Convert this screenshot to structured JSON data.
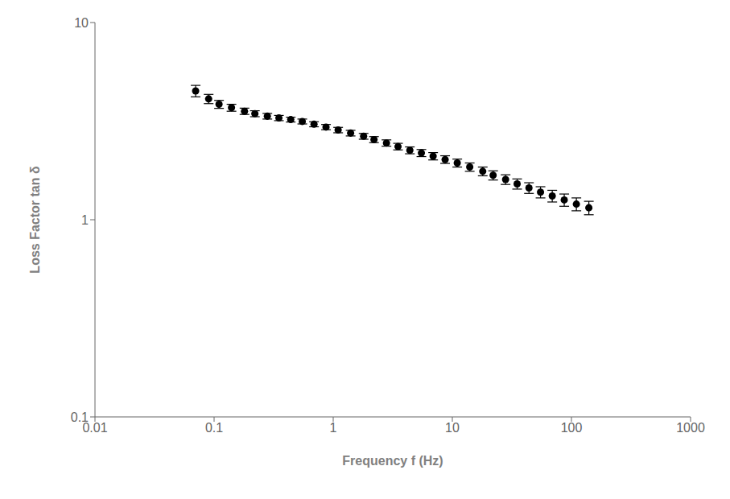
{
  "chart_data": {
    "type": "scatter",
    "xlabel": "Frequency f (Hz)",
    "ylabel": "Loss Factor tan δ",
    "x": [
      0.07,
      0.09,
      0.11,
      0.14,
      0.18,
      0.22,
      0.28,
      0.35,
      0.44,
      0.55,
      0.69,
      0.87,
      1.1,
      1.4,
      1.8,
      2.2,
      2.8,
      3.5,
      4.4,
      5.5,
      6.9,
      8.7,
      11.0,
      14.0,
      18.0,
      22.0,
      28.0,
      35.0,
      44.0,
      55.0,
      69.0,
      87.0,
      110.0,
      140.0
    ],
    "values": [
      4.5,
      4.1,
      3.85,
      3.7,
      3.55,
      3.45,
      3.35,
      3.28,
      3.22,
      3.15,
      3.05,
      2.95,
      2.85,
      2.75,
      2.65,
      2.55,
      2.45,
      2.35,
      2.25,
      2.18,
      2.1,
      2.02,
      1.94,
      1.85,
      1.76,
      1.68,
      1.6,
      1.52,
      1.45,
      1.38,
      1.32,
      1.26,
      1.2,
      1.15
    ],
    "yerr": [
      0.3,
      0.22,
      0.18,
      0.15,
      0.13,
      0.12,
      0.11,
      0.1,
      0.09,
      0.09,
      0.09,
      0.09,
      0.09,
      0.09,
      0.09,
      0.09,
      0.09,
      0.09,
      0.09,
      0.09,
      0.09,
      0.09,
      0.09,
      0.09,
      0.09,
      0.09,
      0.09,
      0.09,
      0.09,
      0.09,
      0.09,
      0.09,
      0.09,
      0.09
    ],
    "xlim": [
      0.01,
      1000
    ],
    "ylim": [
      0.1,
      10
    ],
    "xticks": [
      0.01,
      0.1,
      1,
      10,
      100,
      1000
    ],
    "yticks": [
      0.1,
      1,
      10
    ],
    "log": true,
    "grid": false,
    "color": "#000000",
    "marker": "circle"
  }
}
